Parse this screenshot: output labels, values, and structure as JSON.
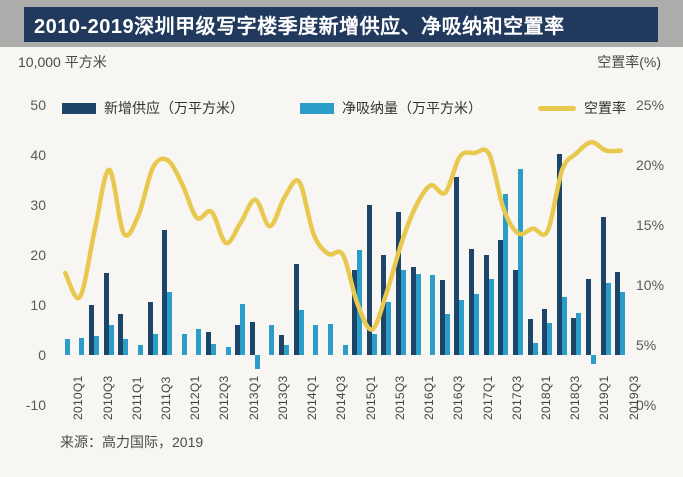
{
  "page": {
    "title": "2010-2019深圳甲级写字楼季度新增供应、净吸纳和空置率",
    "unit_left": "10,000 平方米",
    "unit_right": "空置率(%)",
    "source": "来源：高力国际，2019"
  },
  "colors": {
    "title_bar": "#20395c",
    "supply_bar": "#1c4569",
    "absorption_bar": "#2b9dc9",
    "vacancy_line": "#e9c850"
  },
  "chart_data": {
    "type": "combo",
    "title": "2010-2019深圳甲级写字楼季度新增供应、净吸纳和空置率",
    "categories": [
      "2010Q1",
      "2010Q2",
      "2010Q3",
      "2010Q4",
      "2011Q1",
      "2011Q2",
      "2011Q3",
      "2011Q4",
      "2012Q1",
      "2012Q2",
      "2012Q3",
      "2012Q4",
      "2013Q1",
      "2013Q2",
      "2013Q3",
      "2013Q4",
      "2014Q1",
      "2014Q2",
      "2014Q3",
      "2014Q4",
      "2015Q1",
      "2015Q2",
      "2015Q3",
      "2015Q4",
      "2016Q1",
      "2016Q2",
      "2016Q3",
      "2016Q4",
      "2017Q1",
      "2017Q2",
      "2017Q3",
      "2017Q4",
      "2018Q1",
      "2018Q2",
      "2018Q3",
      "2018Q4",
      "2019Q1",
      "2019Q2",
      "2019Q3"
    ],
    "series": [
      {
        "name": "新增供应（万平方米）",
        "type": "bar",
        "axis": "left",
        "color": "#1c4569",
        "values": [
          0,
          0,
          10,
          16.5,
          8.3,
          0,
          10.7,
          25,
          0,
          0,
          4.7,
          0,
          6,
          6.7,
          0,
          4,
          18.3,
          0,
          0,
          0,
          17,
          30,
          20,
          28.7,
          17.7,
          0,
          15,
          35.7,
          21.3,
          20,
          23,
          17,
          7.3,
          9.3,
          40.3,
          7.5,
          15.3,
          27.7,
          16.7
        ]
      },
      {
        "name": "净吸纳量（万平方米）",
        "type": "bar",
        "axis": "left",
        "color": "#2b9dc9",
        "values": [
          3.3,
          3.4,
          3.8,
          6,
          3.3,
          2,
          4.3,
          12.7,
          4.3,
          5.3,
          2.3,
          1.7,
          10.3,
          -2.7,
          6,
          2,
          9,
          6,
          6.3,
          2,
          21,
          4.3,
          10.7,
          17,
          16.3,
          16,
          8.3,
          11,
          12.3,
          15.3,
          32.3,
          37.2,
          2.5,
          6.5,
          11.7,
          8.5,
          -1.7,
          14.5,
          12.7
        ]
      },
      {
        "name": "空置率",
        "type": "line",
        "axis": "right",
        "color": "#e9c850",
        "values": [
          11,
          9,
          14.5,
          19.6,
          14.3,
          15.8,
          19.8,
          20.4,
          18.4,
          15.6,
          16.1,
          13.5,
          15.2,
          17.1,
          14.9,
          17.3,
          18.6,
          14.2,
          12.6,
          12.5,
          8.4,
          6.3,
          9.4,
          13.5,
          16.6,
          18.3,
          17.7,
          20.7,
          21,
          20.9,
          16.3,
          14.3,
          14.7,
          14.5,
          19.6,
          21,
          21.9,
          21.2,
          21.2
        ]
      }
    ],
    "left_axis": {
      "label": "10,000 平方米",
      "min": -10,
      "max": 50,
      "ticks": [
        50,
        40,
        30,
        20,
        10,
        0,
        -10
      ]
    },
    "right_axis": {
      "label": "空置率(%)",
      "min": 0,
      "max": 25,
      "ticks": [
        "25%",
        "20%",
        "15%",
        "10%",
        "5%",
        "0%"
      ]
    },
    "x_axis": {
      "tick_every": 2
    },
    "legend_position": "top",
    "grid": false
  }
}
